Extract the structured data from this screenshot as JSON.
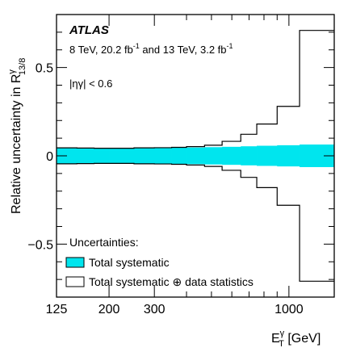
{
  "chart_data": {
    "type": "area",
    "experiment": "ATLAS",
    "subtitle_main": "8 TeV, 20.2 fb",
    "subtitle_sup1": "-1",
    "subtitle_mid": " and 13 TeV, 3.2 fb",
    "subtitle_sup2": "-1",
    "selection": "|ηγ| < 0.6",
    "ylabel": "Relative uncertainty in R",
    "ylabel_sup": "γ",
    "ylabel_sub": "13/8",
    "xlabel_main": "E",
    "xlabel_sup": "γ",
    "xlabel_sub": "T",
    "xlabel_unit": " [GeV]",
    "x_scale": "log",
    "xlim": [
      125,
      1500
    ],
    "ylim": [
      -0.8,
      0.8
    ],
    "x_ticks": [
      125,
      200,
      300,
      1000
    ],
    "x_tick_labels": [
      "125",
      "200",
      "300",
      "1000"
    ],
    "y_ticks": [
      -0.5,
      0,
      0.5
    ],
    "y_tick_labels": [
      "−0.5",
      "0",
      "0.5"
    ],
    "bin_edges": [
      125,
      150,
      175,
      200,
      250,
      300,
      350,
      400,
      470,
      550,
      650,
      750,
      900,
      1100,
      1500
    ],
    "series": [
      {
        "name": "Total systematic",
        "color": "#00e5ee",
        "upper": [
          0.045,
          0.044,
          0.043,
          0.043,
          0.044,
          0.045,
          0.046,
          0.047,
          0.049,
          0.051,
          0.054,
          0.057,
          0.06,
          0.064
        ],
        "lower": [
          -0.045,
          -0.044,
          -0.043,
          -0.043,
          -0.044,
          -0.045,
          -0.046,
          -0.047,
          -0.049,
          -0.051,
          -0.054,
          -0.057,
          -0.06,
          -0.064
        ]
      },
      {
        "name": "Total systematic ⊕ data statistics",
        "color": "#000000",
        "upper": [
          0.045,
          0.044,
          0.043,
          0.043,
          0.045,
          0.046,
          0.048,
          0.052,
          0.06,
          0.082,
          0.122,
          0.18,
          0.28,
          0.71
        ],
        "lower": [
          -0.045,
          -0.044,
          -0.043,
          -0.043,
          -0.045,
          -0.046,
          -0.048,
          -0.052,
          -0.06,
          -0.082,
          -0.122,
          -0.18,
          -0.28,
          -0.71
        ]
      }
    ],
    "legend_title": "Uncertainties:",
    "legend_position": "bottom-left",
    "grid": false
  }
}
